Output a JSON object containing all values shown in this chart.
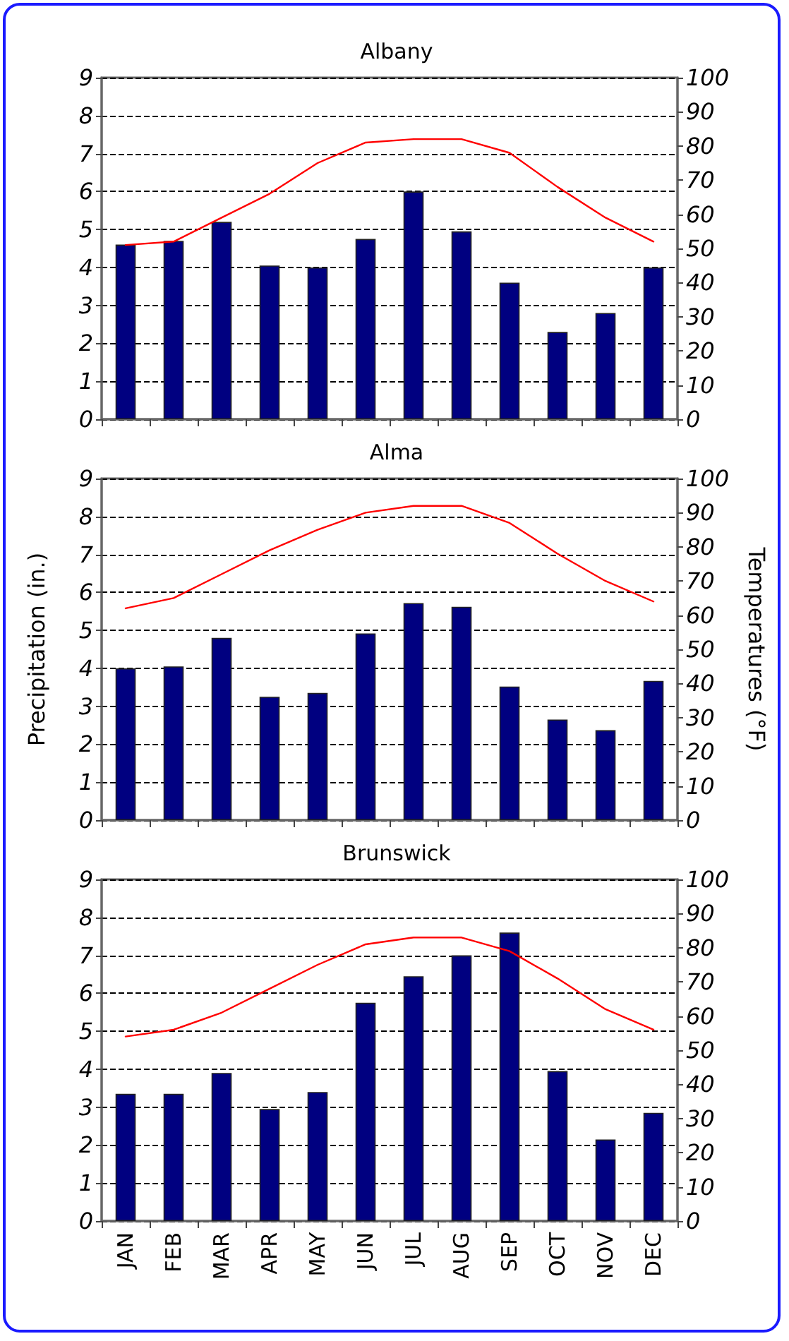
{
  "chart_data": [
    {
      "type": "bar",
      "title": "Albany",
      "categories": [
        null,
        null,
        null,
        null,
        null,
        null,
        null,
        null,
        null,
        null,
        null,
        null
      ],
      "series": [
        {
          "color": "#000080",
          "values": [
            4.6,
            4.7,
            5.2,
            4.05,
            4.0,
            4.75,
            6.0,
            4.95,
            3.6,
            2.3,
            2.8,
            4.0
          ]
        },
        {
          "type": "line",
          "axis": "y2",
          "color": "#ff0000",
          "values": [
            51,
            52,
            59,
            66,
            75,
            81,
            82,
            82,
            78,
            68,
            59,
            52
          ]
        }
      ],
      "ylim": [
        0,
        9
      ],
      "yticks": [
        0,
        1,
        2,
        3,
        4,
        5,
        6,
        7,
        8,
        9
      ],
      "y2lim": [
        0,
        100
      ],
      "y2ticks": [
        0,
        10,
        20,
        30,
        40,
        50,
        60,
        70,
        80,
        90,
        100
      ],
      "grid": "y",
      "marker": "none",
      "tick_labels": "y"
    },
    {
      "type": "bar",
      "title": "Alma",
      "ylabel": "Precipitation (in.)",
      "y2label": "Temperatures (°F)",
      "categories": [
        null,
        null,
        null,
        null,
        null,
        null,
        null,
        null,
        null,
        null,
        null,
        null
      ],
      "series": [
        {
          "color": "#000080",
          "values": [
            4.0,
            4.05,
            4.8,
            3.25,
            3.35,
            4.92,
            5.72,
            5.62,
            3.52,
            2.65,
            2.37,
            3.67
          ]
        },
        {
          "type": "line",
          "axis": "y2",
          "color": "#ff0000",
          "values": [
            62,
            65,
            72,
            79,
            85,
            90,
            92,
            92,
            87,
            78,
            70,
            64
          ]
        }
      ],
      "ylim": [
        0,
        9
      ],
      "yticks": [
        0,
        1,
        2,
        3,
        4,
        5,
        6,
        7,
        8,
        9
      ],
      "y2lim": [
        0,
        100
      ],
      "y2ticks": [
        0,
        10,
        20,
        30,
        40,
        50,
        60,
        70,
        80,
        90,
        100
      ],
      "grid": "y",
      "marker": "none",
      "tick_labels": "y"
    },
    {
      "type": "bar",
      "title": "Brunswick",
      "categories": [
        "JAN",
        "FEB",
        "MAR",
        "APR",
        "MAY",
        "JUN",
        "JUL",
        "AUG",
        "SEP",
        "OCT",
        "NOV",
        "DEC"
      ],
      "series": [
        {
          "color": "#000080",
          "values": [
            3.35,
            3.35,
            3.9,
            2.95,
            3.4,
            5.75,
            6.45,
            7.0,
            7.6,
            3.95,
            2.15,
            2.85
          ]
        },
        {
          "type": "line",
          "axis": "y2",
          "color": "#ff0000",
          "values": [
            54,
            56,
            61,
            68,
            75,
            81,
            83,
            83,
            79,
            71,
            62,
            56
          ]
        }
      ],
      "ylim": [
        0,
        9
      ],
      "yticks": [
        0,
        1,
        2,
        3,
        4,
        5,
        6,
        7,
        8,
        9
      ],
      "y2lim": [
        0,
        100
      ],
      "y2ticks": [
        0,
        10,
        20,
        30,
        40,
        50,
        60,
        70,
        80,
        90,
        100
      ],
      "grid": "y",
      "marker": "none"
    }
  ]
}
